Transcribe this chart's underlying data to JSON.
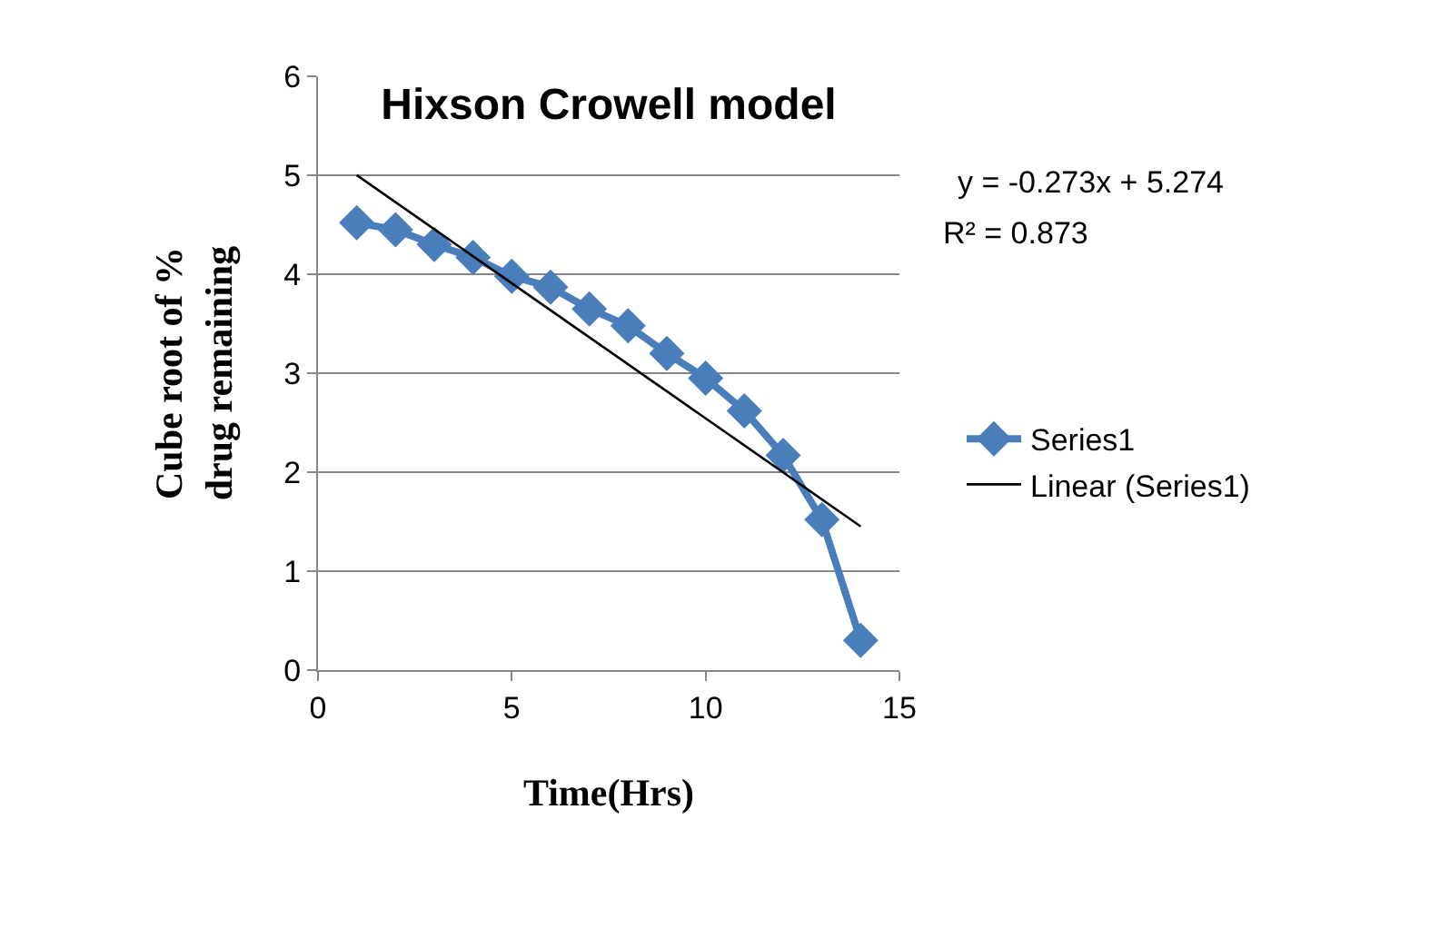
{
  "chart_data": {
    "type": "line",
    "title": "Hixson Crowell model",
    "xlabel": "Time(Hrs)",
    "ylabel": "Cube root of % drug remaining",
    "xlim": [
      0,
      15
    ],
    "xticks": [
      0,
      5,
      10,
      15
    ],
    "ylim": [
      0,
      6
    ],
    "yticks": [
      0,
      1,
      2,
      3,
      4,
      5,
      6
    ],
    "grid": "y",
    "legend": "right",
    "marker": "diamond",
    "series": [
      {
        "name": "Series1",
        "color": "#4a7ebb",
        "x": [
          1,
          2,
          3,
          4,
          5,
          6,
          7,
          8,
          9,
          10,
          11,
          12,
          13,
          14
        ],
        "values": [
          4.52,
          4.45,
          4.3,
          4.17,
          3.98,
          3.87,
          3.65,
          3.48,
          3.2,
          2.95,
          2.62,
          2.17,
          1.52,
          0.3
        ]
      },
      {
        "name": "Linear (Series1)",
        "type": "line",
        "color": "#000000",
        "marker": "none",
        "x": [
          1,
          14
        ],
        "values": [
          5.001,
          1.452
        ]
      }
    ],
    "annotations": [
      "y = -0.273x + 5.274",
      "R² = 0.873"
    ]
  }
}
